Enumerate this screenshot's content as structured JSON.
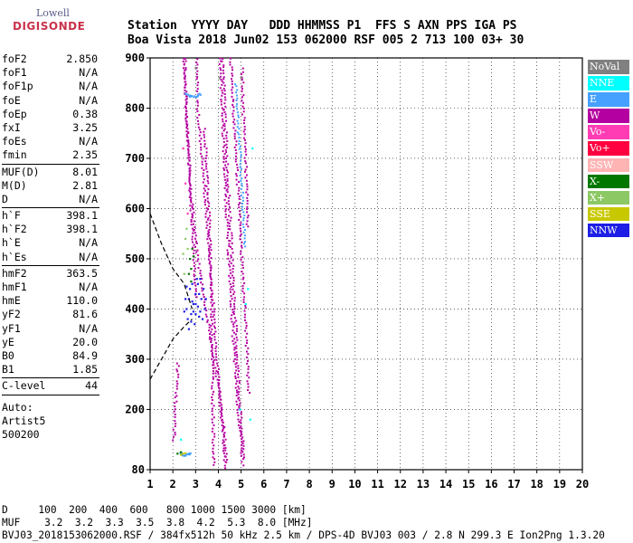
{
  "logo": {
    "line1": "Lowell",
    "line2": "DIGISONDE"
  },
  "header": {
    "row1": [
      "Station",
      "YYYY DAY",
      "DDD HHMMSS P1",
      "FFS S AXN PPS IGA PS"
    ],
    "row2": [
      "Boa Vista",
      "2018 Jun02",
      "153 062000 RSF",
      "005 2 713 100 03+ 30"
    ]
  },
  "params": [
    [
      {
        "k": "foF2",
        "v": "2.850"
      },
      {
        "k": "foF1",
        "v": "N/A"
      },
      {
        "k": "foF1p",
        "v": "N/A"
      },
      {
        "k": "foE",
        "v": "N/A"
      },
      {
        "k": "foEp",
        "v": "0.38"
      },
      {
        "k": "fxI",
        "v": "3.25"
      },
      {
        "k": "foEs",
        "v": "N/A"
      },
      {
        "k": "fmin",
        "v": "2.35"
      }
    ],
    [
      {
        "k": "MUF(D)",
        "v": "8.01"
      },
      {
        "k": "M(D)",
        "v": "2.81"
      },
      {
        "k": "D",
        "v": "N/A"
      }
    ],
    [
      {
        "k": "h`F",
        "v": "398.1"
      },
      {
        "k": "h`F2",
        "v": "398.1"
      },
      {
        "k": "h`E",
        "v": "N/A"
      },
      {
        "k": "h`Es",
        "v": "N/A"
      }
    ],
    [
      {
        "k": "hmF2",
        "v": "363.5"
      },
      {
        "k": "hmF1",
        "v": "N/A"
      },
      {
        "k": "hmE",
        "v": "110.0"
      },
      {
        "k": "yF2",
        "v": "81.6"
      },
      {
        "k": "yF1",
        "v": "N/A"
      },
      {
        "k": "yE",
        "v": "20.0"
      },
      {
        "k": "B0",
        "v": "84.9"
      },
      {
        "k": "B1",
        "v": "1.85"
      }
    ],
    [
      {
        "k": "C-level",
        "v": "44"
      }
    ]
  ],
  "auto": {
    "line1": "Auto:",
    "line2": "Artist5",
    "line3": "500200"
  },
  "legend": [
    {
      "label": "NoVal",
      "color": "#808080"
    },
    {
      "label": "NNE",
      "color": "#00ffff"
    },
    {
      "label": "E",
      "color": "#46a0ff"
    },
    {
      "label": "W",
      "color": "#b400a0"
    },
    {
      "label": "Vo-",
      "color": "#ff3cb4"
    },
    {
      "label": "Vo+",
      "color": "#ff0040"
    },
    {
      "label": "SSW",
      "color": "#ffb4b4"
    },
    {
      "label": "X-",
      "color": "#007800"
    },
    {
      "label": "X+",
      "color": "#8cc864"
    },
    {
      "label": "SSE",
      "color": "#c8c800"
    },
    {
      "label": "NNW",
      "color": "#1e1ee6"
    }
  ],
  "footer": {
    "d_line": "D     100  200  400  600   800 1000 1500 3000 [km]",
    "muf_line": "MUF    3.2  3.2  3.3  3.5  3.8  4.2  5.3  8.0 [MHz]",
    "file_line": "BVJ03_2018153062000.RSF / 384fx512h 50 kHz 2.5 km / DPS-4D BVJ03 003 / 2.8 N 299.3 E Ion2Png 1.3.20"
  },
  "chart_data": {
    "type": "scatter",
    "title": "",
    "xlabel": "",
    "ylabel": "",
    "xlim": [
      1,
      20
    ],
    "ylim": [
      80,
      900
    ],
    "x_ticks": [
      1,
      2,
      3,
      4,
      5,
      6,
      7,
      8,
      9,
      10,
      11,
      12,
      13,
      14,
      15,
      16,
      17,
      18,
      19,
      20
    ],
    "y_ticks": [
      80,
      200,
      300,
      400,
      500,
      600,
      700,
      800,
      900
    ],
    "grid": true,
    "series": [
      {
        "name": "W",
        "color": "#b400a0",
        "traces": [
          [
            [
              2.45,
              900
            ],
            [
              2.6,
              760
            ],
            [
              2.75,
              620
            ],
            [
              2.9,
              500
            ],
            [
              3.0,
              420
            ]
          ],
          [
            [
              3.0,
              900
            ],
            [
              3.05,
              800
            ],
            [
              3.25,
              700
            ],
            [
              3.45,
              580
            ],
            [
              3.65,
              460
            ],
            [
              3.85,
              340
            ],
            [
              4.05,
              220
            ],
            [
              4.2,
              130
            ],
            [
              4.3,
              80
            ]
          ],
          [
            [
              2.5,
              900
            ],
            [
              2.55,
              780
            ],
            [
              2.75,
              640
            ],
            [
              3.0,
              520
            ],
            [
              3.35,
              420
            ],
            [
              3.65,
              330
            ],
            [
              3.95,
              250
            ],
            [
              4.2,
              160
            ],
            [
              4.35,
              90
            ]
          ],
          [
            [
              4.05,
              900
            ],
            [
              4.15,
              780
            ],
            [
              4.25,
              660
            ],
            [
              4.4,
              520
            ],
            [
              4.55,
              400
            ],
            [
              4.7,
              280
            ],
            [
              4.9,
              160
            ],
            [
              5.05,
              85
            ]
          ],
          [
            [
              4.15,
              900
            ],
            [
              4.25,
              800
            ],
            [
              4.35,
              690
            ],
            [
              4.5,
              560
            ],
            [
              4.65,
              430
            ],
            [
              4.8,
              300
            ],
            [
              4.95,
              180
            ],
            [
              5.1,
              100
            ]
          ],
          [
            [
              4.5,
              900
            ],
            [
              4.6,
              820
            ],
            [
              4.75,
              700
            ],
            [
              4.9,
              580
            ],
            [
              5.05,
              460
            ],
            [
              5.2,
              340
            ],
            [
              5.3,
              230
            ]
          ],
          [
            [
              3.35,
              760
            ],
            [
              3.45,
              680
            ],
            [
              3.55,
              600
            ],
            [
              3.6,
              520
            ],
            [
              3.65,
              420
            ],
            [
              3.7,
              320
            ],
            [
              3.72,
              220
            ],
            [
              3.75,
              130
            ],
            [
              3.78,
              85
            ]
          ],
          [
            [
              5.0,
              880
            ],
            [
              5.05,
              800
            ],
            [
              5.15,
              720
            ],
            [
              5.2,
              640
            ],
            [
              5.25,
              560
            ]
          ],
          [
            [
              2.0,
              140
            ],
            [
              2.05,
              180
            ],
            [
              2.1,
              230
            ],
            [
              2.2,
              300
            ]
          ]
        ]
      },
      {
        "name": "E",
        "color": "#46a0ff",
        "traces": [
          [
            [
              2.55,
              830
            ],
            [
              2.75,
              825
            ],
            [
              3.0,
              825
            ],
            [
              3.2,
              830
            ]
          ],
          [
            [
              4.75,
              850
            ],
            [
              4.8,
              800
            ],
            [
              4.85,
              760
            ],
            [
              4.9,
              720
            ],
            [
              4.95,
              680
            ],
            [
              5.0,
              640
            ],
            [
              5.05,
              600
            ],
            [
              5.1,
              560
            ],
            [
              5.15,
              520
            ]
          ],
          [
            [
              2.3,
              115
            ],
            [
              2.45,
              110
            ],
            [
              2.6,
              112
            ],
            [
              2.75,
              115
            ]
          ]
        ]
      },
      {
        "name": "NNE",
        "color": "#00ffff",
        "points": [
          [
            5.5,
            720
          ],
          [
            5.3,
            440
          ],
          [
            5.2,
            410
          ],
          [
            4.95,
            200
          ],
          [
            5.4,
            180
          ],
          [
            2.35,
            140
          ]
        ]
      },
      {
        "name": "NNW",
        "color": "#1e1ee6",
        "points": [
          [
            2.6,
            400
          ],
          [
            2.7,
            420
          ],
          [
            2.8,
            390
          ],
          [
            2.9,
            410
          ],
          [
            3.0,
            430
          ],
          [
            3.1,
            405
          ],
          [
            3.2,
            395
          ],
          [
            2.65,
            380
          ],
          [
            2.75,
            440
          ],
          [
            2.85,
            450
          ],
          [
            2.95,
            370
          ],
          [
            3.05,
            460
          ],
          [
            3.15,
            385
          ],
          [
            3.25,
            420
          ],
          [
            3.35,
            440
          ],
          [
            3.4,
            400
          ],
          [
            2.55,
            420
          ],
          [
            2.7,
            360
          ],
          [
            3.0,
            390
          ],
          [
            2.85,
            415
          ],
          [
            3.3,
            380
          ],
          [
            2.6,
            445
          ],
          [
            3.1,
            450
          ],
          [
            2.9,
            395
          ],
          [
            3.45,
            420
          ],
          [
            3.2,
            460
          ],
          [
            2.5,
            395
          ],
          [
            2.8,
            375
          ],
          [
            3.0,
            410
          ],
          [
            3.15,
            430
          ]
        ]
      },
      {
        "name": "X-",
        "color": "#007800",
        "points": [
          [
            2.75,
            500
          ],
          [
            2.8,
            480
          ],
          [
            2.85,
            520
          ],
          [
            2.7,
            470
          ],
          [
            2.9,
            505
          ],
          [
            2.8,
            455
          ],
          [
            2.2,
            112
          ],
          [
            2.35,
            115
          ]
        ]
      },
      {
        "name": "X+",
        "color": "#8cc864",
        "points": [
          [
            2.55,
            540
          ],
          [
            2.6,
            560
          ],
          [
            2.45,
            510
          ],
          [
            2.65,
            520
          ],
          [
            2.5,
            470
          ]
        ]
      },
      {
        "name": "SSE",
        "color": "#c8c800",
        "points": [
          [
            2.35,
            110
          ],
          [
            2.45,
            112
          ],
          [
            2.55,
            113
          ]
        ]
      },
      {
        "name": "Vo-",
        "color": "#ff3cb4",
        "points": [
          [
            2.45,
            720
          ],
          [
            2.55,
            650
          ],
          [
            2.65,
            590
          ]
        ]
      },
      {
        "name": "NoVal",
        "color": "#808080",
        "points": [
          [
            5.0,
            860
          ],
          [
            3.0,
            880
          ],
          [
            4.05,
            860
          ]
        ]
      },
      {
        "name": "profile",
        "color": "#000000",
        "dashed": true,
        "traces": [
          [
            [
              1.0,
              590
            ],
            [
              1.5,
              530
            ],
            [
              2.0,
              480
            ],
            [
              2.5,
              450
            ],
            [
              2.85,
              400
            ]
          ],
          [
            [
              1.0,
              260
            ],
            [
              1.5,
              300
            ],
            [
              2.0,
              340
            ],
            [
              2.5,
              365
            ],
            [
              2.85,
              380
            ]
          ]
        ]
      }
    ]
  }
}
